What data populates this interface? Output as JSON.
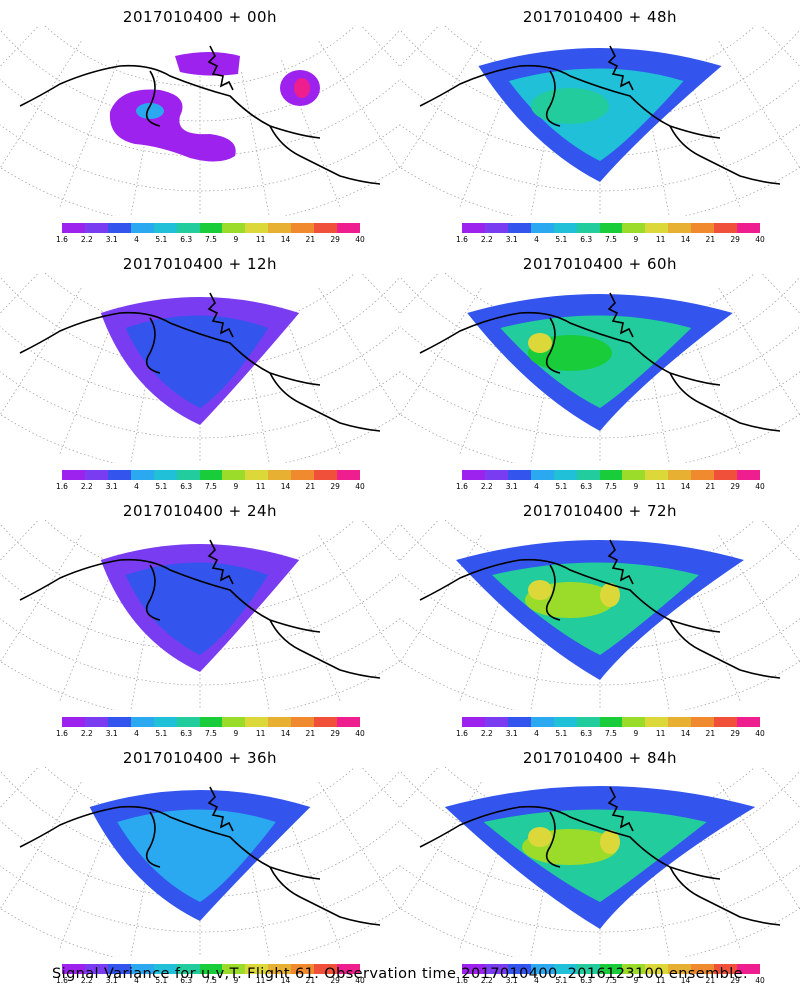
{
  "colorbar": {
    "labels": [
      "1.6",
      "2.2",
      "3.1",
      "4",
      "5.1",
      "6.3",
      "7.5",
      "9",
      "11",
      "14",
      "21",
      "29",
      "40"
    ],
    "colors": [
      "#9e22ee",
      "#7a3cf0",
      "#3355ee",
      "#2aa8f0",
      "#1fc0d8",
      "#22cc9c",
      "#18cc3a",
      "#9bdc2a",
      "#dcd83a",
      "#e8b032",
      "#f08a2e",
      "#f0503a",
      "#ee1e8e"
    ]
  },
  "panels": [
    {
      "title": "2017010400 + 00h",
      "level": 0
    },
    {
      "title": "2017010400 + 48h",
      "level": 3
    },
    {
      "title": "2017010400 + 12h",
      "level": 1
    },
    {
      "title": "2017010400 + 60h",
      "level": 4
    },
    {
      "title": "2017010400 + 24h",
      "level": 1
    },
    {
      "title": "2017010400 + 72h",
      "level": 5
    },
    {
      "title": "2017010400 + 36h",
      "level": 2
    },
    {
      "title": "2017010400 + 84h",
      "level": 6
    }
  ],
  "caption": "Signal Variance for u,v,T. Flight 61. Observation time 2017010400. 2016123100 ensemble."
}
